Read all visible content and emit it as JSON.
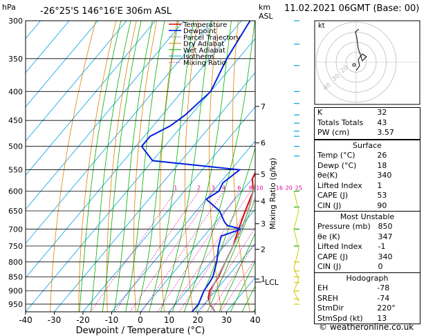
{
  "header": {
    "hpa_label": "hPa",
    "location": "-26°25'S  146°16'E  306m  ASL",
    "km_label": "km",
    "asl_label": "ASL",
    "datetime": "11.02.2021  06GMT  (Base: 00)"
  },
  "colors": {
    "temperature": "#e00000",
    "dewpoint": "#0020e0",
    "parcel": "#a0a0a0",
    "dry_adiabat": "#e08000",
    "wet_adiabat": "#00b000",
    "isotherm": "#00a0e0",
    "mixing_ratio": "#e000a0"
  },
  "chart_data": {
    "type": "line",
    "title": "",
    "xlabel": "Dewpoint / Temperature (°C)",
    "ylabel": "",
    "xlim": [
      -40,
      40
    ],
    "x_ticks": [
      "-40",
      "-30",
      "-20",
      "-10",
      "0",
      "10",
      "20",
      "30",
      "40"
    ],
    "pressure_levels": [
      "300",
      "350",
      "400",
      "450",
      "500",
      "550",
      "600",
      "650",
      "700",
      "750",
      "800",
      "850",
      "900",
      "950"
    ],
    "km_ticks": [
      "7",
      "6",
      "5",
      "4",
      "3",
      "2",
      "1"
    ],
    "lcl_label": "LCL",
    "mixing_ratio_axis_label": "Mixing Ratio (g/kg)",
    "mixing_ratio_labels": [
      "1",
      "2",
      "3",
      "4",
      "6",
      "8",
      "10",
      "16",
      "20",
      "25"
    ],
    "legend": [
      "Temperature",
      "Dewpoint",
      "Parcel Trajectory",
      "Dry Adiabat",
      "Wet Adiabat",
      "Isotherm",
      "Mixing Ratio"
    ],
    "series": [
      {
        "name": "Temperature",
        "points": [
          [
            980,
            26
          ],
          [
            950,
            22
          ],
          [
            925,
            19.5
          ],
          [
            900,
            18
          ],
          [
            850,
            17
          ],
          [
            800,
            15
          ],
          [
            750,
            13
          ],
          [
            700,
            10
          ],
          [
            650,
            7
          ],
          [
            600,
            4
          ],
          [
            570,
            0
          ],
          [
            550,
            -1
          ],
          [
            530,
            1
          ],
          [
            500,
            -3
          ],
          [
            480,
            -5
          ],
          [
            460,
            -7
          ],
          [
            440,
            -12
          ],
          [
            400,
            -18
          ],
          [
            350,
            -26
          ],
          [
            300,
            -35
          ]
        ]
      },
      {
        "name": "Dewpoint",
        "points": [
          [
            980,
            18
          ],
          [
            950,
            18
          ],
          [
            925,
            17
          ],
          [
            900,
            16
          ],
          [
            870,
            15.5
          ],
          [
            850,
            15
          ],
          [
            800,
            12
          ],
          [
            750,
            8
          ],
          [
            720,
            6
          ],
          [
            700,
            11
          ],
          [
            690,
            5
          ],
          [
            680,
            3
          ],
          [
            650,
            -2
          ],
          [
            620,
            -10
          ],
          [
            600,
            -8
          ],
          [
            580,
            -9
          ],
          [
            550,
            -7
          ],
          [
            530,
            -40
          ],
          [
            500,
            -48
          ],
          [
            480,
            -48
          ],
          [
            460,
            -44
          ],
          [
            440,
            -42
          ],
          [
            400,
            -40
          ],
          [
            350,
            -44
          ],
          [
            300,
            -47
          ]
        ]
      },
      {
        "name": "Parcel Trajectory",
        "points": [
          [
            980,
            26
          ],
          [
            940,
            21
          ],
          [
            900,
            18.5
          ],
          [
            860,
            17
          ],
          [
            800,
            15
          ],
          [
            750,
            13
          ],
          [
            700,
            11
          ],
          [
            650,
            8
          ],
          [
            600,
            4
          ],
          [
            550,
            0
          ],
          [
            500,
            -4
          ],
          [
            450,
            -10
          ],
          [
            400,
            -16
          ],
          [
            350,
            -24
          ],
          [
            300,
            -33
          ]
        ]
      }
    ]
  },
  "hodograph": {
    "label": "kt",
    "ring_labels": [
      "40",
      "30",
      "20"
    ]
  },
  "indices": {
    "rows": [
      {
        "label": "K",
        "value": "32"
      },
      {
        "label": "Totals Totals",
        "value": "43"
      },
      {
        "label": "PW (cm)",
        "value": "3.57"
      }
    ]
  },
  "surface": {
    "title": "Surface",
    "rows": [
      {
        "label": "Temp (°C)",
        "value": "26"
      },
      {
        "label": "Dewp (°C)",
        "value": "18"
      },
      {
        "label": "θe(K)",
        "value": "340"
      },
      {
        "label": "Lifted Index",
        "value": "1"
      },
      {
        "label": "CAPE (J)",
        "value": "53"
      },
      {
        "label": "CIN (J)",
        "value": "90"
      }
    ]
  },
  "most_unstable": {
    "title": "Most Unstable",
    "rows": [
      {
        "label": "Pressure (mb)",
        "value": "850"
      },
      {
        "label": "θe (K)",
        "value": "347"
      },
      {
        "label": "Lifted Index",
        "value": "-1"
      },
      {
        "label": "CAPE (J)",
        "value": "340"
      },
      {
        "label": "CIN (J)",
        "value": "0"
      }
    ]
  },
  "hodograph_indices": {
    "title": "Hodograph",
    "rows": [
      {
        "label": "EH",
        "value": "-78"
      },
      {
        "label": "SREH",
        "value": "-74"
      },
      {
        "label": "StmDir",
        "value": "220°"
      },
      {
        "label": "StmSpd (kt)",
        "value": "13"
      }
    ]
  },
  "footer": "© weatheronline.co.uk"
}
